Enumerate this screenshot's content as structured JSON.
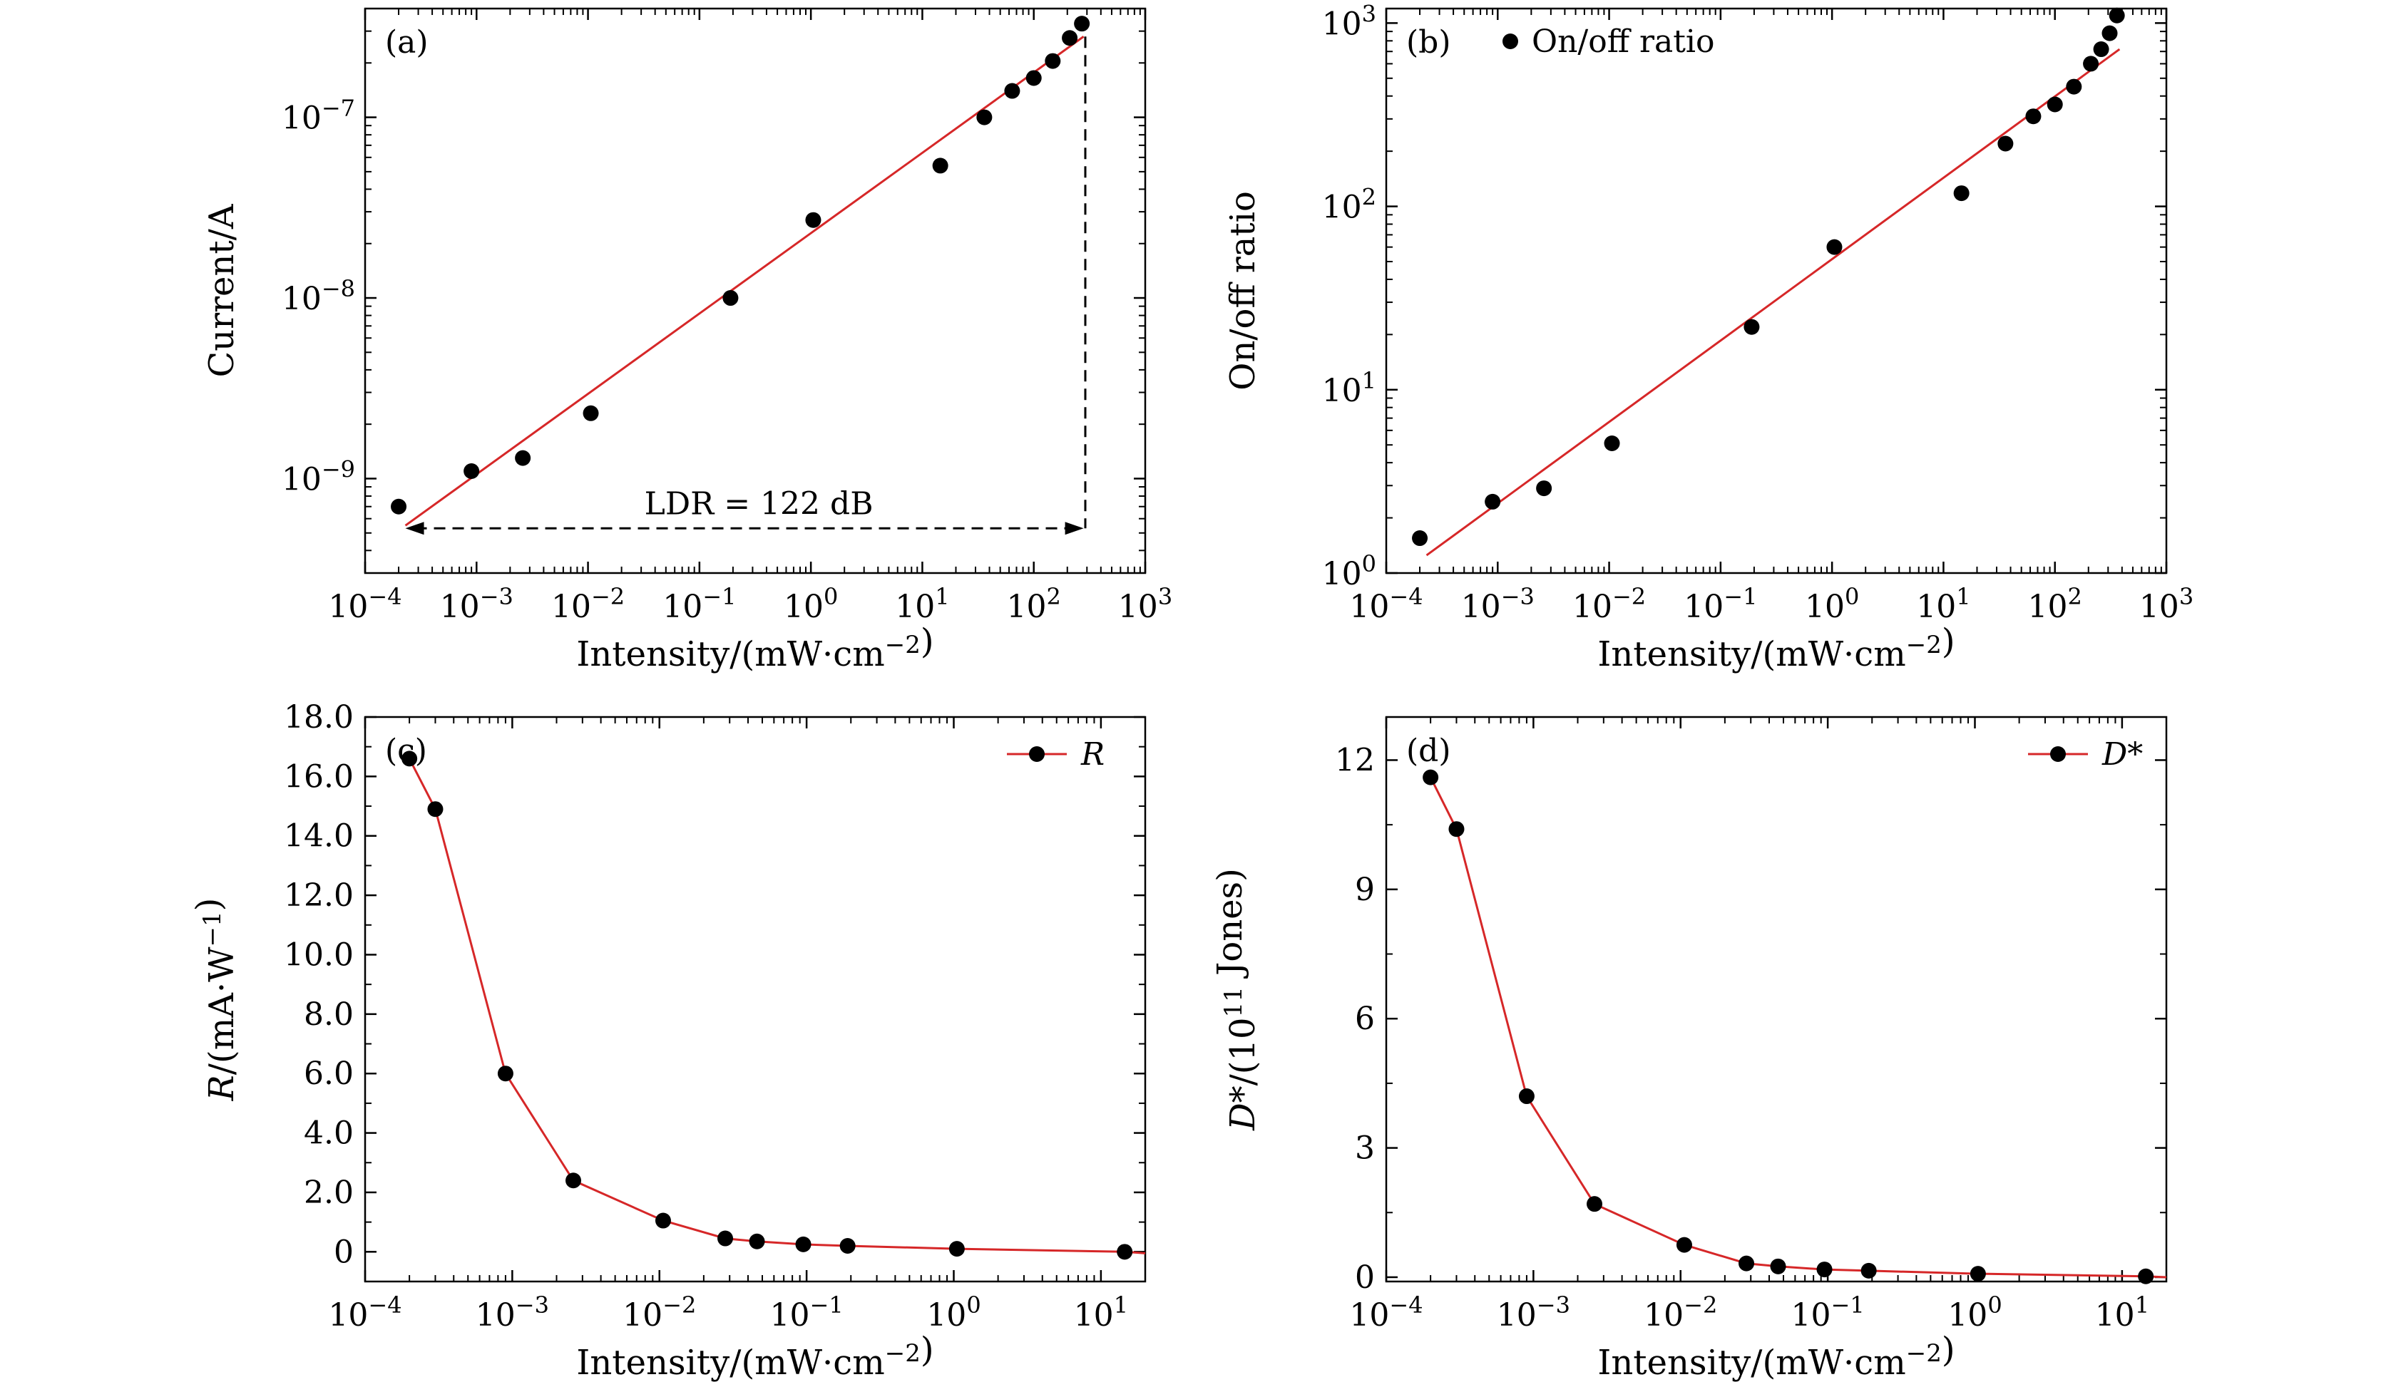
{
  "colors": {
    "marker": "#000000",
    "line": "#d62728",
    "axis": "#000000"
  },
  "chart_data": [
    {
      "panel": "(a)",
      "type": "scatter",
      "xscale": "log",
      "yscale": "log",
      "xlim": [
        0.0001,
        1000
      ],
      "ylim": [
        3e-10,
        4e-07
      ],
      "xlabel": "Intensity/(mW·cm⁻²)",
      "ylabel": "Current/A",
      "xticks": [
        {
          "value": 0.0001,
          "base": "10",
          "exp": "−4"
        },
        {
          "value": 0.001,
          "base": "10",
          "exp": "−3"
        },
        {
          "value": 0.01,
          "base": "10",
          "exp": "−2"
        },
        {
          "value": 0.1,
          "base": "10",
          "exp": "−1"
        },
        {
          "value": 1,
          "base": "10",
          "exp": "0"
        },
        {
          "value": 10,
          "base": "10",
          "exp": "1"
        },
        {
          "value": 100,
          "base": "10",
          "exp": "2"
        },
        {
          "value": 1000,
          "base": "10",
          "exp": "3"
        }
      ],
      "yticks": [
        {
          "value": 1e-09,
          "base": "10",
          "exp": "−9"
        },
        {
          "value": 1e-08,
          "base": "10",
          "exp": "−8"
        },
        {
          "value": 1e-07,
          "base": "10",
          "exp": "−7"
        }
      ],
      "points": {
        "x": [
          0.0002,
          0.0009,
          0.0026,
          0.0106,
          0.19,
          1.05,
          14.5,
          36,
          64,
          100,
          148,
          210,
          270
        ],
        "y": [
          7e-10,
          1.1e-09,
          1.3e-09,
          2.3e-09,
          1e-08,
          2.7e-08,
          5.4e-08,
          1e-07,
          1.4e-07,
          1.65e-07,
          2.05e-07,
          2.75e-07,
          3.3e-07
        ]
      },
      "fit": {
        "x": [
          0.00023,
          280
        ],
        "y": [
          5.5e-10,
          2.8e-07
        ]
      },
      "ldr_annotation": {
        "text": "LDR = 122 dB",
        "x_start": 0.00023,
        "x_end": 280,
        "y_level": 5.5e-10,
        "vertical_x": 290,
        "vertical_y_top": 2.8e-07
      }
    },
    {
      "panel": "(b)",
      "type": "scatter",
      "xscale": "log",
      "yscale": "log",
      "xlim": [
        0.0001,
        1000
      ],
      "ylim": [
        1,
        1200
      ],
      "xlabel": "Intensity/(mW·cm⁻²)",
      "ylabel": "On/off ratio",
      "legend": {
        "label": "On/off ratio",
        "position": "top-left"
      },
      "xticks": [
        {
          "value": 0.0001,
          "base": "10",
          "exp": "−4"
        },
        {
          "value": 0.001,
          "base": "10",
          "exp": "−3"
        },
        {
          "value": 0.01,
          "base": "10",
          "exp": "−2"
        },
        {
          "value": 0.1,
          "base": "10",
          "exp": "−1"
        },
        {
          "value": 1,
          "base": "10",
          "exp": "0"
        },
        {
          "value": 10,
          "base": "10",
          "exp": "1"
        },
        {
          "value": 100,
          "base": "10",
          "exp": "2"
        },
        {
          "value": 1000,
          "base": "10",
          "exp": "3"
        }
      ],
      "yticks": [
        {
          "value": 1,
          "base": "10",
          "exp": "0"
        },
        {
          "value": 10,
          "base": "10",
          "exp": "1"
        },
        {
          "value": 100,
          "base": "10",
          "exp": "2"
        },
        {
          "value": 1000,
          "base": "10",
          "exp": "3"
        }
      ],
      "points": {
        "x": [
          0.0002,
          0.0009,
          0.0026,
          0.0106,
          0.19,
          1.05,
          14.5,
          36,
          64,
          100,
          148,
          210,
          260,
          310,
          360
        ],
        "y": [
          1.55,
          2.45,
          2.9,
          5.1,
          22,
          60,
          118,
          220,
          310,
          360,
          450,
          600,
          720,
          880,
          1100
        ]
      },
      "fit": {
        "x": [
          0.00023,
          380
        ],
        "y": [
          1.25,
          720
        ]
      }
    },
    {
      "panel": "(c)",
      "type": "line",
      "xscale": "log",
      "yscale": "linear",
      "xlim": [
        0.0001,
        20
      ],
      "ylim": [
        -1.0,
        18.0
      ],
      "xlabel": "Intensity/(mW·cm⁻²)",
      "ylabel": "R/(mA·W⁻¹)",
      "legend": {
        "label": "R",
        "position": "top-right"
      },
      "xticks": [
        {
          "value": 0.0001,
          "base": "10",
          "exp": "−4"
        },
        {
          "value": 0.001,
          "base": "10",
          "exp": "−3"
        },
        {
          "value": 0.01,
          "base": "10",
          "exp": "−2"
        },
        {
          "value": 0.1,
          "base": "10",
          "exp": "−1"
        },
        {
          "value": 1,
          "base": "10",
          "exp": "0"
        },
        {
          "value": 10,
          "base": "10",
          "exp": "1"
        }
      ],
      "yticks": [
        {
          "value": 0,
          "label": "0"
        },
        {
          "value": 2,
          "label": "2.0"
        },
        {
          "value": 4,
          "label": "4.0"
        },
        {
          "value": 6,
          "label": "6.0"
        },
        {
          "value": 8,
          "label": "8.0"
        },
        {
          "value": 10,
          "label": "10.0"
        },
        {
          "value": 12,
          "label": "12.0"
        },
        {
          "value": 14,
          "label": "14.0"
        },
        {
          "value": 16,
          "label": "16.0"
        },
        {
          "value": 18,
          "label": "18.0"
        }
      ],
      "series": [
        {
          "name": "R",
          "x": [
            0.0002,
            0.0003,
            0.0009,
            0.0026,
            0.0106,
            0.028,
            0.046,
            0.095,
            0.19,
            1.05,
            14.5
          ],
          "y": [
            16.6,
            14.9,
            6.0,
            2.4,
            1.05,
            0.45,
            0.35,
            0.25,
            0.2,
            0.1,
            0.0
          ]
        }
      ],
      "tail_end": {
        "x": 20,
        "y": -0.05
      }
    },
    {
      "panel": "(d)",
      "type": "line",
      "xscale": "log",
      "yscale": "linear",
      "xlim": [
        0.0001,
        20
      ],
      "ylim": [
        -0.1,
        13.0
      ],
      "xlabel": "Intensity/(mW·cm⁻²)",
      "ylabel": "D*/(10¹¹ Jones)",
      "legend": {
        "label": "D*",
        "position": "top-right"
      },
      "xticks": [
        {
          "value": 0.0001,
          "base": "10",
          "exp": "−4"
        },
        {
          "value": 0.001,
          "base": "10",
          "exp": "−3"
        },
        {
          "value": 0.01,
          "base": "10",
          "exp": "−2"
        },
        {
          "value": 0.1,
          "base": "10",
          "exp": "−1"
        },
        {
          "value": 1,
          "base": "10",
          "exp": "0"
        },
        {
          "value": 10,
          "base": "10",
          "exp": "1"
        }
      ],
      "yticks": [
        {
          "value": 0,
          "label": "0"
        },
        {
          "value": 3,
          "label": "3"
        },
        {
          "value": 6,
          "label": "6"
        },
        {
          "value": 9,
          "label": "9"
        },
        {
          "value": 12,
          "label": "12"
        }
      ],
      "series": [
        {
          "name": "D*",
          "x": [
            0.0002,
            0.0003,
            0.0009,
            0.0026,
            0.0106,
            0.028,
            0.046,
            0.095,
            0.19,
            1.05,
            14.5
          ],
          "y": [
            11.6,
            10.4,
            4.2,
            1.7,
            0.75,
            0.32,
            0.25,
            0.18,
            0.15,
            0.08,
            0.02
          ]
        }
      ],
      "tail_end": {
        "x": 20,
        "y": 0.0
      }
    }
  ]
}
